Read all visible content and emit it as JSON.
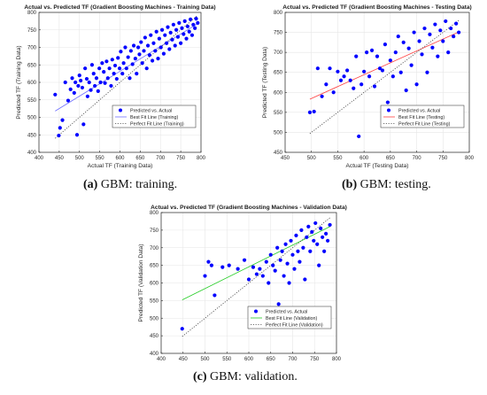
{
  "chart_data": [
    {
      "type": "scatter",
      "panel": "a",
      "title": "Actual vs. Predicted TF (Gradient Boosting Machines - Training Data)",
      "xlabel": "Actual TF (Training Data)",
      "ylabel": "Predicted TF (Training Data)",
      "xlim": [
        400,
        800
      ],
      "ylim": [
        400,
        800
      ],
      "xticks": [
        400,
        450,
        500,
        550,
        600,
        650,
        700,
        750,
        800
      ],
      "yticks": [
        400,
        450,
        500,
        550,
        600,
        650,
        700,
        750,
        800
      ],
      "grid": true,
      "legend_placement": "bottom-right",
      "legend": [
        "Predicted vs. Actual",
        "Best Fit Line (Training)",
        "Perfect Fit Line (Training)"
      ],
      "series": [
        {
          "name": "Predicted vs. Actual",
          "style": "points",
          "color": "#0000ff",
          "x": [
            440,
            449,
            452,
            458,
            465,
            472,
            478,
            482,
            487,
            490,
            494,
            497,
            500,
            503,
            507,
            510,
            514,
            518,
            520,
            524,
            528,
            531,
            535,
            538,
            542,
            546,
            549,
            552,
            556,
            560,
            563,
            567,
            570,
            574,
            578,
            581,
            585,
            588,
            592,
            595,
            599,
            602,
            606,
            609,
            613,
            616,
            620,
            624,
            627,
            631,
            634,
            638,
            641,
            645,
            648,
            652,
            655,
            659,
            662,
            666,
            669,
            673,
            676,
            680,
            683,
            687,
            690,
            694,
            697,
            701,
            704,
            708,
            711,
            715,
            718,
            722,
            725,
            729,
            732,
            736,
            739,
            743,
            746,
            750,
            753,
            757,
            760,
            764,
            767,
            771,
            774,
            778,
            781,
            785,
            788,
            792
          ],
          "y": [
            565,
            448,
            470,
            492,
            600,
            548,
            580,
            612,
            570,
            600,
            450,
            590,
            620,
            605,
            585,
            480,
            640,
            610,
            560,
            600,
            578,
            650,
            625,
            590,
            612,
            575,
            640,
            600,
            655,
            630,
            598,
            660,
            612,
            640,
            590,
            665,
            625,
            648,
            610,
            670,
            640,
            688,
            625,
            655,
            700,
            640,
            672,
            612,
            690,
            652,
            705,
            668,
            625,
            700,
            680,
            715,
            655,
            690,
            728,
            640,
            705,
            678,
            735,
            662,
            712,
            690,
            745,
            668,
            725,
            700,
            750,
            682,
            735,
            712,
            758,
            695,
            742,
            722,
            765,
            705,
            750,
            730,
            770,
            712,
            755,
            738,
            775,
            725,
            760,
            745,
            780,
            735,
            765,
            755,
            782,
            770
          ]
        },
        {
          "name": "Best Fit Line (Training)",
          "style": "line",
          "color": "#7070ff",
          "x": [
            440,
            792
          ],
          "y": [
            518,
            768
          ]
        },
        {
          "name": "Perfect Fit Line (Training)",
          "style": "dotted",
          "color": "#444444",
          "x": [
            440,
            792
          ],
          "y": [
            440,
            792
          ]
        }
      ]
    },
    {
      "type": "scatter",
      "panel": "b",
      "title": "Actual vs. Predicted TF (Gradient Boosting Machines - Testing Data)",
      "xlabel": "Actual TF (Testing Data)",
      "ylabel": "Predicted TF (Testing Data)",
      "xlim": [
        450,
        800
      ],
      "ylim": [
        450,
        800
      ],
      "xticks": [
        450,
        500,
        550,
        600,
        650,
        700,
        750,
        800
      ],
      "yticks": [
        450,
        500,
        550,
        600,
        650,
        700,
        750,
        800
      ],
      "grid": true,
      "legend_placement": "bottom-right",
      "legend": [
        "Predicted vs. Actual",
        "Best Fit Line (Testing)",
        "Perfect Fit Line (Testing)"
      ],
      "series": [
        {
          "name": "Predicted vs. Actual",
          "style": "points",
          "color": "#0000ff",
          "x": [
            497,
            505,
            512,
            520,
            528,
            535,
            542,
            550,
            556,
            562,
            568,
            574,
            580,
            585,
            590,
            595,
            600,
            605,
            610,
            615,
            620,
            625,
            630,
            635,
            640,
            645,
            650,
            655,
            660,
            665,
            670,
            675,
            680,
            685,
            690,
            695,
            700,
            705,
            710,
            715,
            720,
            725,
            730,
            735,
            740,
            745,
            750,
            755,
            760,
            765,
            770,
            775,
            780
          ],
          "y": [
            550,
            552,
            660,
            590,
            620,
            660,
            600,
            652,
            630,
            640,
            655,
            630,
            610,
            690,
            490,
            620,
            652,
            700,
            640,
            705,
            615,
            690,
            660,
            655,
            720,
            575,
            680,
            640,
            700,
            740,
            650,
            725,
            605,
            710,
            668,
            750,
            620,
            728,
            695,
            760,
            650,
            745,
            712,
            770,
            690,
            755,
            728,
            778,
            700,
            760,
            740,
            772,
            750
          ]
        },
        {
          "name": "Best Fit Line (Testing)",
          "style": "line",
          "color": "#ff4040",
          "x": [
            497,
            780
          ],
          "y": [
            583,
            751
          ]
        },
        {
          "name": "Perfect Fit Line (Testing)",
          "style": "dotted",
          "color": "#444444",
          "x": [
            497,
            780
          ],
          "y": [
            497,
            780
          ]
        }
      ]
    },
    {
      "type": "scatter",
      "panel": "c",
      "title": "Actual vs. Predicted TF (Gradient Boosting Machines - Validation Data)",
      "xlabel": "Actual TF (Validation Data)",
      "ylabel": "Predicted TF (Validation Data)",
      "xlim": [
        400,
        800
      ],
      "ylim": [
        400,
        800
      ],
      "xticks": [
        400,
        450,
        500,
        550,
        600,
        650,
        700,
        750,
        800
      ],
      "yticks": [
        400,
        450,
        500,
        550,
        600,
        650,
        700,
        750,
        800
      ],
      "grid": true,
      "legend_placement": "bottom-right",
      "legend": [
        "Predicted vs. Actual",
        "Best Fit Line (Validation)",
        "Perfect Fit Line (Validation)"
      ],
      "series": [
        {
          "name": "Predicted vs. Actual",
          "style": "points",
          "color": "#0000ff",
          "x": [
            448,
            500,
            508,
            515,
            522,
            540,
            555,
            575,
            590,
            600,
            610,
            618,
            625,
            632,
            640,
            645,
            650,
            655,
            660,
            665,
            668,
            672,
            676,
            680,
            684,
            688,
            692,
            696,
            700,
            704,
            708,
            712,
            716,
            720,
            724,
            728,
            732,
            736,
            740,
            744,
            748,
            752,
            756,
            760,
            764,
            768,
            772,
            776,
            780,
            785
          ],
          "y": [
            470,
            620,
            660,
            650,
            565,
            645,
            650,
            640,
            665,
            610,
            645,
            625,
            640,
            620,
            660,
            600,
            680,
            650,
            635,
            700,
            540,
            665,
            690,
            620,
            710,
            655,
            600,
            720,
            680,
            640,
            735,
            690,
            660,
            750,
            700,
            610,
            730,
            760,
            690,
            745,
            720,
            770,
            710,
            650,
            755,
            730,
            690,
            740,
            720,
            765
          ]
        },
        {
          "name": "Best Fit Line (Validation)",
          "style": "line",
          "color": "#22cc22",
          "x": [
            448,
            785
          ],
          "y": [
            552,
            760
          ]
        },
        {
          "name": "Perfect Fit Line (Validation)",
          "style": "dotted",
          "color": "#444444",
          "x": [
            448,
            785
          ],
          "y": [
            448,
            785
          ]
        }
      ]
    }
  ],
  "captions": {
    "a": {
      "label": "(a)",
      "text": "GBM: training."
    },
    "b": {
      "label": "(b)",
      "text": "GBM: testing."
    },
    "c": {
      "label": "(c)",
      "text": "GBM: validation."
    }
  }
}
